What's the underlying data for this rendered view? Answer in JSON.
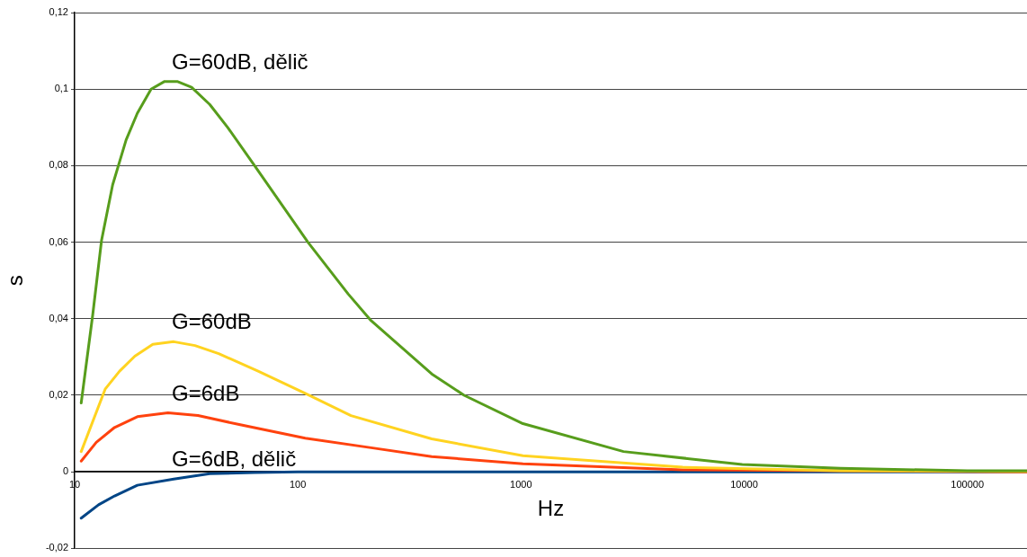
{
  "chart_data": {
    "type": "line",
    "xlabel": "Hz",
    "ylabel": "s",
    "log": "x",
    "grid": "y",
    "legend": false,
    "marker": "none",
    "line_style": "solid",
    "xlim": [
      10,
      185000
    ],
    "xticks": [
      10,
      100,
      1000,
      10000,
      100000
    ],
    "ylim": [
      -0.02,
      0.12
    ],
    "yticks": [
      {
        "value": -0.02,
        "label": "-0,02"
      },
      0,
      {
        "value": 0.02,
        "label": "0,02"
      },
      {
        "value": 0.04,
        "label": "0,04"
      },
      {
        "value": 0.06,
        "label": "0,06"
      },
      {
        "value": 0.08,
        "label": "0,08"
      },
      {
        "value": 0.1,
        "label": "0,1"
      },
      {
        "value": 0.12,
        "label": "0,12"
      }
    ],
    "series": [
      {
        "name": "G=60dB, dělič",
        "color": "#579d1c",
        "x": [
          10.7,
          12.05,
          13.2,
          14.8,
          17,
          19.1,
          22,
          25.3,
          28.8,
          33.4,
          40.3,
          48.5,
          64,
          111,
          168,
          213,
          398,
          556,
          1020,
          2880,
          9800,
          27000,
          100000,
          185000
        ],
        "values": [
          0.018,
          0.041,
          0.0605,
          0.075,
          0.0867,
          0.0937,
          0.1,
          0.102,
          0.102,
          0.1005,
          0.096,
          0.09,
          0.08,
          0.06,
          0.0465,
          0.0395,
          0.0256,
          0.02,
          0.0126,
          0.0053,
          0.0019,
          0.0009,
          0.0003,
          0.0003
        ]
      },
      {
        "name": "G=60dB",
        "color": "#ffd320",
        "x": [
          10.7,
          13.7,
          15.9,
          18.6,
          22.4,
          27.8,
          34.6,
          44.2,
          66.4,
          108,
          173,
          398,
          1020,
          5300,
          27000,
          185000
        ],
        "values": [
          0.0053,
          0.0216,
          0.0263,
          0.0302,
          0.0333,
          0.034,
          0.033,
          0.0309,
          0.0263,
          0.0205,
          0.0147,
          0.0086,
          0.0042,
          0.0012,
          0.0003,
          0.0001
        ]
      },
      {
        "name": "G=6dB",
        "color": "#ff420e",
        "x": [
          10.7,
          12.5,
          15.1,
          19.1,
          26.2,
          35.7,
          55.2,
          108,
          213,
          398,
          1020,
          5300,
          185000
        ],
        "values": [
          0.0028,
          0.0077,
          0.0116,
          0.0144,
          0.0154,
          0.0147,
          0.0123,
          0.0088,
          0.0063,
          0.004,
          0.0021,
          0.0005,
          0
        ]
      },
      {
        "name": "G=6dB, dělič",
        "color": "#004586",
        "x": [
          10.7,
          12.8,
          15.1,
          19.1,
          27.8,
          40.3,
          64,
          100,
          185000
        ],
        "values": [
          -0.0121,
          -0.0086,
          -0.0063,
          -0.0035,
          -0.0019,
          -0.0005,
          -0.0002,
          0,
          0
        ]
      }
    ]
  }
}
